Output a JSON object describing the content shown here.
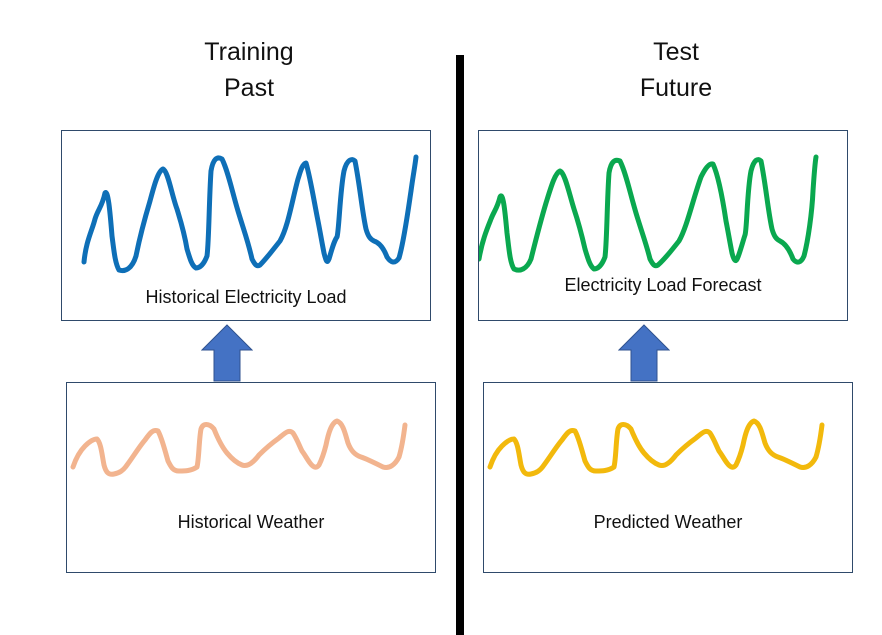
{
  "left": {
    "heading": {
      "line1": "Training",
      "line2": "Past"
    },
    "load_panel": {
      "label": "Historical Electricity Load",
      "color": "#0e6fb7"
    },
    "weather_panel": {
      "label": "Historical Weather",
      "color": "#f2b48f"
    }
  },
  "right": {
    "heading": {
      "line1": "Test",
      "line2": "Future"
    },
    "load_panel": {
      "label": "Electricity Load Forecast",
      "color": "#0aa84f"
    },
    "weather_panel": {
      "label": "Predicted Weather",
      "color": "#f2b90c"
    }
  },
  "arrow_color": "#4472c4",
  "divider_color": "#000000"
}
